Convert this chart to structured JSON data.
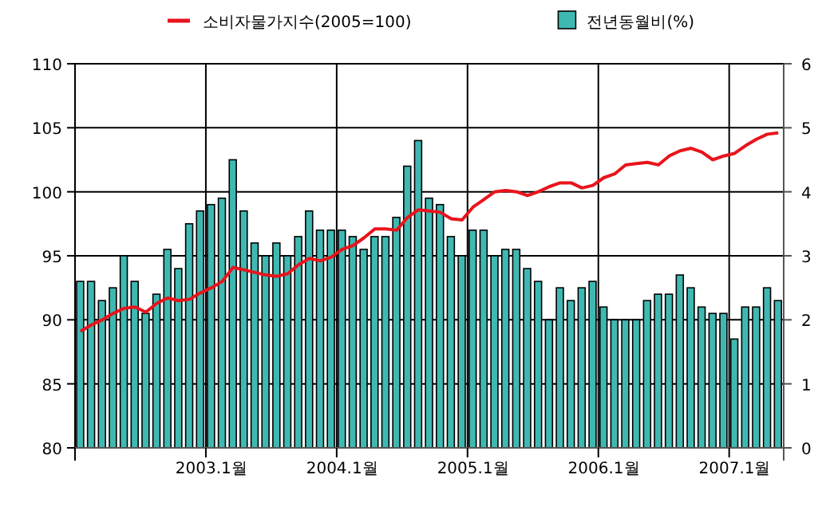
{
  "chart_data": {
    "type": "bar",
    "categories": [
      null,
      null,
      null,
      null,
      null,
      null,
      null,
      null,
      null,
      null,
      null,
      null,
      "2003.1월",
      null,
      null,
      null,
      null,
      null,
      null,
      null,
      null,
      null,
      null,
      null,
      "2004.1월",
      null,
      null,
      null,
      null,
      null,
      null,
      null,
      null,
      null,
      null,
      null,
      "2005.1월",
      null,
      null,
      null,
      null,
      null,
      null,
      null,
      null,
      null,
      null,
      null,
      "2006.1월",
      null,
      null,
      null,
      null,
      null,
      null,
      null,
      null,
      null,
      null,
      null,
      "2007.1월",
      null,
      null,
      null,
      null
    ],
    "series": [
      {
        "name": "소비자물가지수(2005=100)",
        "type": "line",
        "axis": "y",
        "color": "#e8141c",
        "values": [
          89.1,
          89.6,
          90.0,
          90.5,
          90.9,
          91.0,
          90.6,
          91.3,
          91.7,
          91.5,
          91.6,
          92.1,
          92.5,
          93.0,
          94.1,
          93.9,
          93.7,
          93.5,
          93.4,
          93.6,
          94.3,
          94.8,
          94.6,
          94.9,
          95.5,
          95.8,
          96.4,
          97.1,
          97.1,
          97.0,
          98.0,
          98.6,
          98.5,
          98.4,
          97.9,
          97.8,
          98.8,
          99.4,
          100.0,
          100.1,
          100.0,
          99.7,
          100.0,
          100.4,
          100.7,
          100.7,
          100.3,
          100.5,
          101.1,
          101.4,
          102.1,
          102.2,
          102.3,
          102.1,
          102.8,
          103.2,
          103.4,
          103.1,
          102.5,
          102.8,
          103.0,
          103.6,
          104.1,
          104.5,
          104.6
        ]
      },
      {
        "name": "전년동월비(%)",
        "axis": "y2",
        "color": "#3fb8b2",
        "values": [
          2.6,
          2.6,
          2.3,
          2.5,
          3.0,
          2.6,
          2.1,
          2.4,
          3.1,
          2.8,
          3.5,
          3.7,
          3.8,
          3.9,
          4.5,
          3.7,
          3.2,
          3.0,
          3.2,
          3.0,
          3.3,
          3.7,
          3.4,
          3.4,
          3.4,
          3.3,
          3.1,
          3.3,
          3.3,
          3.6,
          4.4,
          4.8,
          3.9,
          3.8,
          3.3,
          3.0,
          3.4,
          3.4,
          3.0,
          3.1,
          3.1,
          2.8,
          2.6,
          2.0,
          2.5,
          2.3,
          2.5,
          2.6,
          2.2,
          2.0,
          2.0,
          2.0,
          2.3,
          2.4,
          2.4,
          2.7,
          2.5,
          2.2,
          2.1,
          2.1,
          1.7,
          2.2,
          2.2,
          2.5,
          2.3
        ]
      }
    ],
    "ylim": [
      80,
      110
    ],
    "yticks": [
      80,
      85,
      90,
      95,
      100,
      105,
      110
    ],
    "y2lim": [
      0,
      6
    ],
    "y2ticks": [
      0,
      1,
      2,
      3,
      4,
      5,
      6
    ],
    "grid": true,
    "legend": "top"
  }
}
